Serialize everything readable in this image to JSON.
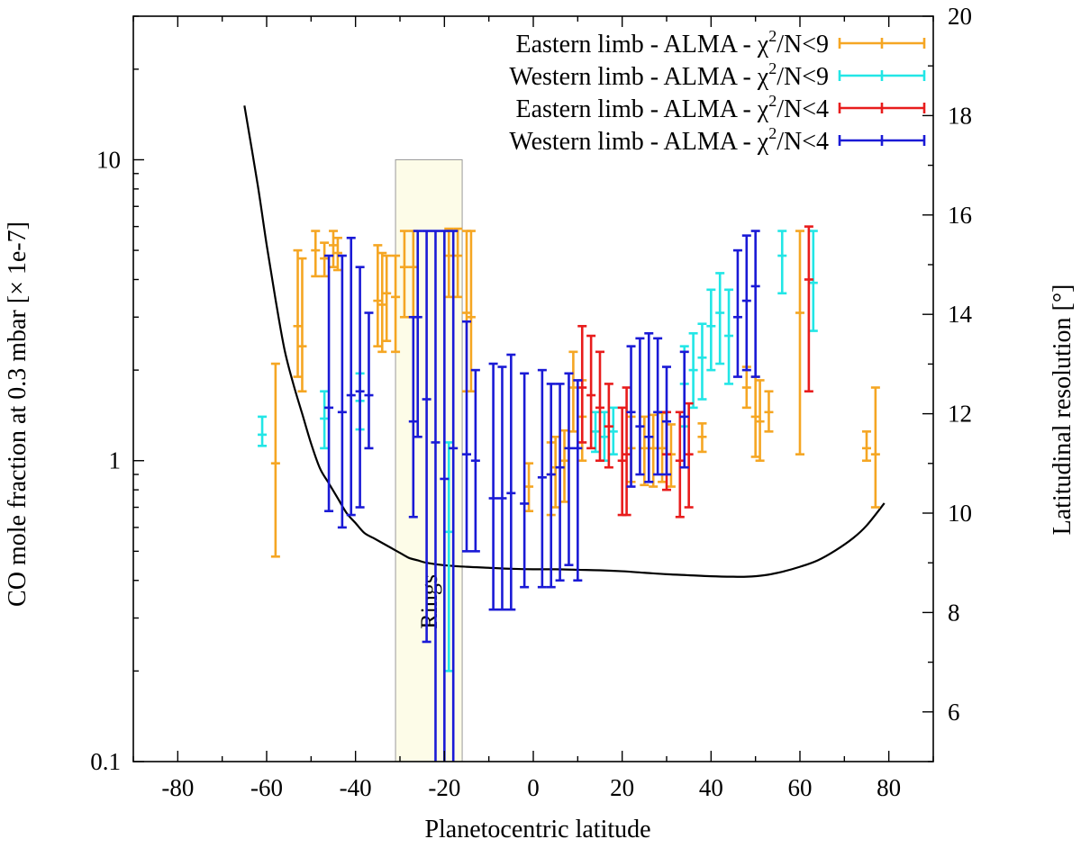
{
  "chart_data": {
    "type": "errorbar-scatter",
    "xlabel": "Planetocentric latitude",
    "ylabel_left": "CO mole fraction at 0.3 mbar [× 1e-7]",
    "ylabel_right": "Latitudinal resolution [°]",
    "xlim": [
      -90,
      90
    ],
    "ylim_left": [
      0.1,
      30
    ],
    "yscale_left": "log",
    "ylim_right": [
      5,
      20
    ],
    "x_ticks": [
      -80,
      -60,
      -40,
      -20,
      0,
      20,
      40,
      60,
      80
    ],
    "x_tick_labels": [
      "-80",
      "-60",
      "-40",
      "-20",
      "0",
      "20",
      "40",
      "60",
      "80"
    ],
    "y_left_ticks": [
      0.1,
      1,
      10
    ],
    "y_left_tick_labels": [
      "0.1",
      "1",
      "10"
    ],
    "y_right_ticks": [
      6,
      8,
      10,
      12,
      14,
      16,
      18,
      20
    ],
    "y_right_tick_labels": [
      "6",
      "8",
      "10",
      "12",
      "14",
      "16",
      "18",
      "20"
    ],
    "shaded_region": {
      "label": "Rings",
      "x": [
        -31,
        -16
      ],
      "y": [
        0.1,
        10
      ],
      "color": "#fdfce8"
    },
    "legend_position": "top-right",
    "series": [
      {
        "name": "Eastern limb - ALMA - χ²/N<9",
        "legend_text": "Eastern limb - ALMA - χ",
        "legend_sup": "2",
        "legend_tail": "/N<9",
        "color": "#f5a623",
        "points": [
          [
            -58,
            0.98,
            0.48,
            2.1
          ],
          [
            -53,
            2.8,
            1.9,
            5.0
          ],
          [
            -52,
            2.4,
            1.7,
            4.7
          ],
          [
            -49,
            5.0,
            4.1,
            5.8
          ],
          [
            -47,
            4.7,
            4.1,
            5.3
          ],
          [
            -45,
            5.2,
            4.4,
            5.8
          ],
          [
            -44,
            4.9,
            4.3,
            5.5
          ],
          [
            -35,
            3.4,
            2.4,
            5.2
          ],
          [
            -34,
            3.3,
            2.3,
            4.9
          ],
          [
            -33,
            3.6,
            2.5,
            4.8
          ],
          [
            -31,
            3.5,
            2.3,
            4.8
          ],
          [
            -29,
            4.4,
            3.0,
            5.8
          ],
          [
            -27,
            4.4,
            3.0,
            5.8
          ],
          [
            -19,
            4.8,
            3.5,
            5.9
          ],
          [
            -17,
            4.8,
            3.5,
            5.9
          ],
          [
            -15,
            3.1,
            1.7,
            5.8
          ],
          [
            -14,
            3.0,
            1.7,
            5.8
          ],
          [
            -1,
            0.82,
            0.68,
            0.98
          ],
          [
            4,
            0.9,
            0.66,
            1.15
          ],
          [
            5,
            0.95,
            0.7,
            1.2
          ],
          [
            7,
            1.0,
            0.73,
            1.26
          ],
          [
            9,
            1.75,
            1.25,
            2.3
          ],
          [
            11,
            1.4,
            1.0,
            1.85
          ],
          [
            22,
            1.1,
            0.85,
            1.4
          ],
          [
            25,
            1.1,
            0.83,
            1.4
          ],
          [
            27,
            1.1,
            0.82,
            1.42
          ],
          [
            29,
            1.1,
            0.85,
            1.44
          ],
          [
            31,
            1.05,
            0.82,
            1.32
          ],
          [
            38,
            1.2,
            1.07,
            1.33
          ],
          [
            48,
            1.75,
            1.5,
            2.05
          ],
          [
            50,
            1.4,
            1.03,
            1.9
          ],
          [
            51,
            1.35,
            1.0,
            1.85
          ],
          [
            53,
            1.45,
            1.25,
            1.7
          ],
          [
            60,
            3.1,
            1.05,
            5.8
          ],
          [
            75,
            1.1,
            1.0,
            1.25
          ],
          [
            77,
            1.05,
            0.7,
            1.75
          ]
        ]
      },
      {
        "name": "Western limb - ALMA - χ²/N<9",
        "legend_text": "Western limb - ALMA - χ",
        "legend_sup": "2",
        "legend_tail": "/N<9",
        "color": "#22e6e6",
        "points": [
          [
            -61,
            1.22,
            1.12,
            1.4
          ],
          [
            -47,
            1.38,
            1.1,
            1.7
          ],
          [
            -39,
            1.58,
            1.27,
            1.95
          ],
          [
            -19,
            0.58,
            0.2,
            1.15
          ],
          [
            14,
            1.25,
            1.07,
            1.45
          ],
          [
            16,
            1.2,
            1.0,
            1.45
          ],
          [
            18,
            1.25,
            1.05,
            1.5
          ],
          [
            34,
            1.8,
            1.3,
            2.4
          ],
          [
            36,
            2.0,
            1.5,
            2.65
          ],
          [
            38,
            2.2,
            1.6,
            2.85
          ],
          [
            40,
            2.8,
            2.0,
            3.7
          ],
          [
            42,
            3.1,
            2.1,
            4.2
          ],
          [
            44,
            2.6,
            1.8,
            3.7
          ],
          [
            56,
            4.8,
            3.6,
            5.8
          ],
          [
            63,
            3.9,
            2.7,
            5.8
          ]
        ]
      },
      {
        "name": "Eastern limb - ALMA - χ²/N<4",
        "legend_text": "Eastern limb - ALMA - χ",
        "legend_sup": "2",
        "legend_tail": "/N<4",
        "color": "#e81c1c",
        "points": [
          [
            11,
            1.75,
            1.15,
            2.8
          ],
          [
            13,
            1.65,
            1.1,
            2.6
          ],
          [
            15,
            1.5,
            1.0,
            2.3
          ],
          [
            17,
            1.3,
            0.95,
            1.8
          ],
          [
            20,
            1.0,
            0.66,
            1.5
          ],
          [
            21,
            1.05,
            0.66,
            1.75
          ],
          [
            30,
            1.05,
            0.8,
            1.45
          ],
          [
            33,
            1.0,
            0.65,
            1.45
          ],
          [
            35,
            1.05,
            0.7,
            1.55
          ],
          [
            62,
            4.0,
            1.7,
            6.0
          ]
        ]
      },
      {
        "name": "Western limb - ALMA - χ²/N<4",
        "legend_text": "Western limb - ALMA - χ",
        "legend_sup": "2",
        "legend_tail": "/N<4",
        "color": "#1a1ad6",
        "points": [
          [
            -46,
            1.5,
            0.68,
            4.8
          ],
          [
            -43,
            1.45,
            0.6,
            4.8
          ],
          [
            -41,
            1.65,
            0.66,
            5.5
          ],
          [
            -39,
            1.7,
            0.7,
            4.4
          ],
          [
            -37,
            1.65,
            1.1,
            3.1
          ],
          [
            -27,
            1.35,
            0.65,
            3.0
          ],
          [
            -26,
            3.0,
            1.2,
            5.8
          ],
          [
            -24,
            1.6,
            0.25,
            5.8
          ],
          [
            -22,
            1.15,
            0.02,
            5.8
          ],
          [
            -20,
            0.87,
            0.02,
            5.8
          ],
          [
            -18,
            1.1,
            0.02,
            5.8
          ],
          [
            -15,
            1.05,
            0.5,
            2.9
          ],
          [
            -13,
            1.0,
            0.5,
            2.0
          ],
          [
            -9,
            0.75,
            0.32,
            2.1
          ],
          [
            -7,
            0.75,
            0.32,
            2.05
          ],
          [
            -5,
            0.78,
            0.32,
            2.25
          ],
          [
            -2,
            0.72,
            0.38,
            1.95
          ],
          [
            2,
            0.88,
            0.38,
            2.0
          ],
          [
            4,
            0.9,
            0.38,
            1.8
          ],
          [
            6,
            0.95,
            0.4,
            1.8
          ],
          [
            8,
            1.1,
            0.45,
            1.95
          ],
          [
            10,
            1.1,
            0.4,
            1.85
          ],
          [
            22,
            1.45,
            0.82,
            2.4
          ],
          [
            24,
            1.3,
            0.9,
            2.55
          ],
          [
            26,
            1.2,
            0.85,
            2.65
          ],
          [
            28,
            1.45,
            0.9,
            2.55
          ],
          [
            30,
            1.35,
            0.9,
            2.05
          ],
          [
            34,
            1.4,
            0.95,
            2.3
          ],
          [
            46,
            3.0,
            1.9,
            5.0
          ],
          [
            48,
            3.4,
            2.0,
            5.6
          ],
          [
            50,
            3.8,
            1.9,
            5.8
          ]
        ]
      }
    ],
    "resolution_curve": {
      "name": "Latitudinal resolution",
      "axis": "right",
      "color": "#000000",
      "points": [
        [
          -65,
          18.2
        ],
        [
          -62,
          16.6
        ],
        [
          -60,
          15.4
        ],
        [
          -58,
          14.3
        ],
        [
          -56,
          13.3
        ],
        [
          -54,
          12.6
        ],
        [
          -52,
          12.0
        ],
        [
          -50,
          11.4
        ],
        [
          -48,
          10.9
        ],
        [
          -46,
          10.6
        ],
        [
          -44,
          10.3
        ],
        [
          -42,
          10.0
        ],
        [
          -40,
          9.8
        ],
        [
          -38,
          9.6
        ],
        [
          -36,
          9.5
        ],
        [
          -34,
          9.4
        ],
        [
          -32,
          9.3
        ],
        [
          -30,
          9.2
        ],
        [
          -28,
          9.1
        ],
        [
          -26,
          9.05
        ],
        [
          -24,
          9.0
        ],
        [
          -20,
          8.95
        ],
        [
          -15,
          8.92
        ],
        [
          -10,
          8.9
        ],
        [
          -5,
          8.88
        ],
        [
          0,
          8.87
        ],
        [
          5,
          8.87
        ],
        [
          10,
          8.86
        ],
        [
          15,
          8.85
        ],
        [
          20,
          8.83
        ],
        [
          25,
          8.8
        ],
        [
          30,
          8.77
        ],
        [
          35,
          8.75
        ],
        [
          40,
          8.73
        ],
        [
          45,
          8.72
        ],
        [
          48,
          8.72
        ],
        [
          52,
          8.75
        ],
        [
          56,
          8.82
        ],
        [
          60,
          8.92
        ],
        [
          64,
          9.05
        ],
        [
          68,
          9.25
        ],
        [
          72,
          9.5
        ],
        [
          75,
          9.75
        ],
        [
          79,
          10.2
        ]
      ]
    }
  }
}
